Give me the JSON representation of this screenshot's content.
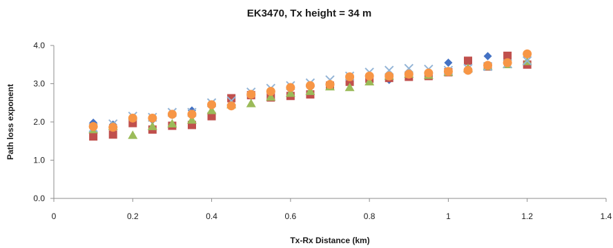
{
  "chart_data": {
    "type": "scatter",
    "title": "EK3470, Tx height = 34 m",
    "xlabel": "Tx-Rx Distance  (km)",
    "ylabel": "Path loss  exponent",
    "xlim": [
      0,
      1.4
    ],
    "ylim": [
      0,
      4.0
    ],
    "x_ticks": [
      0,
      0.2,
      0.4,
      0.6,
      0.8,
      1,
      1.2,
      1.4
    ],
    "x_tick_labels": [
      "0",
      "0.2",
      "0.4",
      "0.6",
      "0.8",
      "1",
      "1.2",
      "1.4"
    ],
    "y_ticks": [
      0,
      1,
      2,
      3,
      4
    ],
    "y_tick_labels": [
      "0.0",
      "1.0",
      "2.0",
      "3.0",
      "4.0"
    ],
    "grid": false,
    "legend": "none",
    "series": [
      {
        "marker": "diamond",
        "color": "#4472c4",
        "x": [
          0.1,
          0.15,
          0.2,
          0.25,
          0.3,
          0.35,
          0.4,
          0.45,
          0.5,
          0.55,
          0.6,
          0.65,
          0.7,
          0.75,
          0.8,
          0.85,
          0.9,
          0.95,
          1.0,
          1.05,
          1.1,
          1.15,
          1.2
        ],
        "y": [
          1.98,
          1.93,
          2.05,
          2.05,
          2.18,
          2.3,
          2.45,
          2.6,
          2.68,
          2.75,
          2.85,
          2.9,
          2.98,
          3.05,
          3.08,
          3.1,
          3.22,
          3.25,
          3.55,
          3.4,
          3.72,
          3.6,
          3.55
        ]
      },
      {
        "marker": "square",
        "color": "#c0504d",
        "x": [
          0.1,
          0.15,
          0.2,
          0.25,
          0.3,
          0.35,
          0.4,
          0.45,
          0.5,
          0.55,
          0.6,
          0.65,
          0.7,
          0.75,
          0.8,
          0.85,
          0.9,
          0.95,
          1.0,
          1.05,
          1.1,
          1.15,
          1.2
        ],
        "y": [
          1.62,
          1.67,
          1.97,
          1.8,
          1.9,
          1.92,
          2.15,
          2.62,
          2.7,
          2.64,
          2.68,
          2.72,
          2.95,
          3.05,
          3.13,
          3.15,
          3.18,
          3.2,
          3.3,
          3.6,
          3.45,
          3.73,
          3.5
        ]
      },
      {
        "marker": "triangle",
        "color": "#9bbb59",
        "x": [
          0.1,
          0.15,
          0.2,
          0.25,
          0.3,
          0.35,
          0.4,
          0.45,
          0.5,
          0.55,
          0.6,
          0.65,
          0.7,
          0.75,
          0.8,
          0.85,
          0.9,
          0.95,
          1.0,
          1.05,
          1.1,
          1.15,
          1.2
        ],
        "y": [
          1.8,
          1.88,
          1.65,
          1.88,
          1.95,
          2.05,
          2.3,
          2.45,
          2.48,
          2.65,
          2.75,
          2.8,
          2.92,
          2.9,
          3.05,
          3.2,
          3.25,
          3.22,
          3.3,
          3.4,
          3.45,
          3.5,
          3.58
        ]
      },
      {
        "marker": "x",
        "color": "#93b4d6",
        "x": [
          0.1,
          0.15,
          0.2,
          0.25,
          0.3,
          0.35,
          0.4,
          0.45,
          0.5,
          0.55,
          0.6,
          0.65,
          0.7,
          0.75,
          0.8,
          0.85,
          0.9,
          0.95,
          1.0,
          1.05,
          1.1,
          1.15,
          1.2
        ],
        "y": [
          1.85,
          1.95,
          2.15,
          2.12,
          2.25,
          2.25,
          2.5,
          2.55,
          2.78,
          2.88,
          2.95,
          3.02,
          3.1,
          3.2,
          3.3,
          3.35,
          3.4,
          3.38,
          3.35,
          3.4,
          3.45,
          3.52,
          3.6
        ]
      },
      {
        "marker": "circle",
        "color": "#f79646",
        "x": [
          0.1,
          0.15,
          0.2,
          0.25,
          0.3,
          0.35,
          0.4,
          0.45,
          0.5,
          0.55,
          0.6,
          0.65,
          0.7,
          0.75,
          0.8,
          0.85,
          0.9,
          0.95,
          1.0,
          1.05,
          1.1,
          1.15,
          1.2
        ],
        "y": [
          1.88,
          1.86,
          2.1,
          2.1,
          2.2,
          2.2,
          2.45,
          2.42,
          2.72,
          2.8,
          2.9,
          2.95,
          2.98,
          3.18,
          3.2,
          3.2,
          3.25,
          3.28,
          3.32,
          3.35,
          3.48,
          3.55,
          3.78
        ]
      }
    ]
  }
}
